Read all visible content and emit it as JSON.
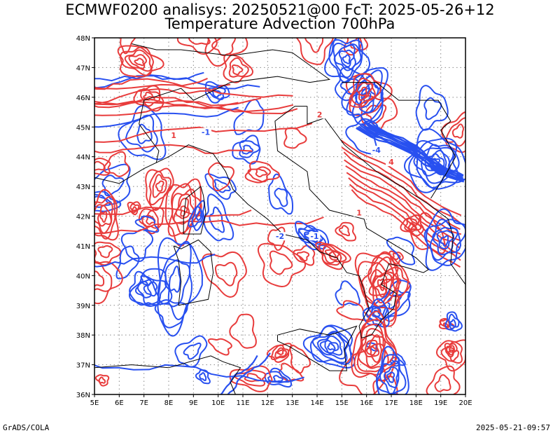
{
  "header": {
    "line1": "ECMWF0200 analisys: 20250521@00 FcT: 2025-05-26+12",
    "line2": "Temperature Advection 700hPa"
  },
  "footer": {
    "left": "GrADS/COLA",
    "right": "2025-05-21-09:57"
  },
  "map": {
    "lon_labels": [
      "5E",
      "6E",
      "7E",
      "8E",
      "9E",
      "10E",
      "11E",
      "12E",
      "13E",
      "14E",
      "15E",
      "16E",
      "17E",
      "18E",
      "19E",
      "20E"
    ],
    "lat_labels": [
      "36N",
      "37N",
      "38N",
      "39N",
      "40N",
      "41N",
      "42N",
      "43N",
      "44N",
      "45N",
      "46N",
      "47N",
      "48N"
    ],
    "lon_range": [
      5,
      20
    ],
    "lat_range": [
      36,
      48
    ],
    "colors": {
      "warm_advection": "#e83c3c",
      "cold_advection": "#2850f0",
      "coastline": "#000000",
      "grid": "#888888"
    },
    "contour_labels": [
      {
        "text": "1",
        "sign": "warm"
      },
      {
        "text": "-1",
        "sign": "cold"
      },
      {
        "text": "-2",
        "sign": "cold"
      },
      {
        "text": "2",
        "sign": "warm"
      },
      {
        "text": "-4",
        "sign": "cold"
      },
      {
        "text": "4",
        "sign": "warm"
      },
      {
        "text": "-1",
        "sign": "cold"
      },
      {
        "text": "1",
        "sign": "warm"
      }
    ]
  }
}
